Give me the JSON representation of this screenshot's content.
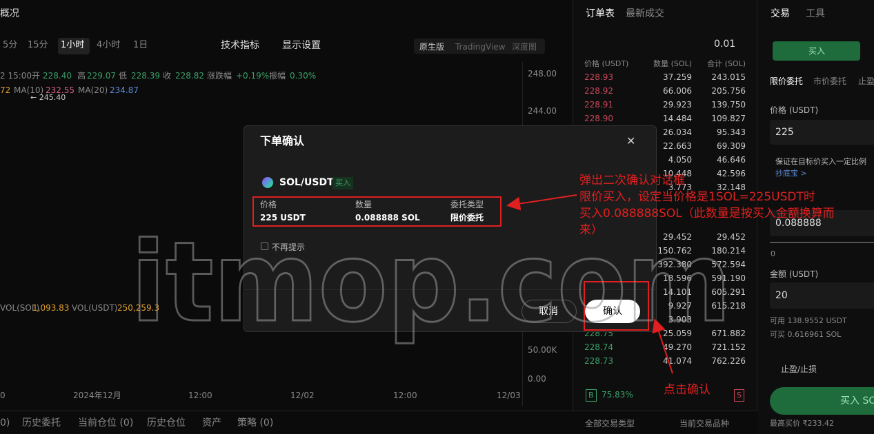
{
  "chart_panel": {
    "title": "概况",
    "intervals": [
      "5分",
      "15分",
      "1小时",
      "4小时",
      "1日"
    ],
    "toolbar": [
      "技术指标",
      "显示设置"
    ],
    "views": [
      "原生版",
      "TradingView",
      "深度图"
    ],
    "ohlc_line": {
      "time": "2 15:00",
      "open_label": "开",
      "open": "228.40",
      "high_label": "高",
      "high": "229.07",
      "low_label": "低",
      "low": "228.39",
      "close_label": "收",
      "close": "228.82",
      "change_label": "涨跌幅",
      "change": "+0.19%",
      "amp_label": "振幅",
      "amp": "0.30%"
    },
    "ma_line": [
      "72",
      "MA(10)",
      "232.55",
      "MA(20)",
      "234.87"
    ],
    "high_marker": "← 245.40",
    "price_axis": [
      "248.00",
      "244.00"
    ],
    "vol_line": [
      "VOL(SOL)",
      "1,093.83",
      "VOL(USDT)",
      "250,259.3"
    ],
    "vol_axis": [
      "50.00K",
      "0.00"
    ],
    "time_axis": [
      "0",
      "2024年12月",
      "12:00",
      "12/02",
      "12:00",
      "12/03"
    ]
  },
  "bottom_tabs": [
    "0)",
    "历史委托",
    "当前仓位 (0)",
    "历史仓位",
    "资产",
    "策略 (0)"
  ],
  "bottom_right": [
    "全部交易类型",
    "当前交易品种"
  ],
  "orderbook": {
    "tabs": [
      "订单表",
      "最新成交"
    ],
    "precision": "0.01",
    "headers": [
      "价格 (USDT)",
      "数量 (SOL)",
      "合计 (SOL)"
    ],
    "asks": [
      {
        "price": "228.93",
        "qty": "37.259",
        "total": "243.015"
      },
      {
        "price": "228.92",
        "qty": "66.006",
        "total": "205.756"
      },
      {
        "price": "228.91",
        "qty": "29.923",
        "total": "139.750"
      },
      {
        "price": "228.90",
        "qty": "14.484",
        "total": "109.827"
      },
      {
        "qty": "26.034",
        "total": "95.343"
      },
      {
        "qty": "22.663",
        "total": "69.309"
      },
      {
        "qty": "4.050",
        "total": "46.646"
      },
      {
        "qty": "10.448",
        "total": "42.596"
      },
      {
        "qty": "3.773",
        "total": "32.148"
      }
    ],
    "bids": [
      {
        "qty": "29.452",
        "total": "29.452"
      },
      {
        "qty": "150.762",
        "total": "180.214"
      },
      {
        "qty": "392.380",
        "total": "572.594"
      },
      {
        "qty": "18.596",
        "total": "591.190"
      },
      {
        "qty": "14.101",
        "total": "605.291"
      },
      {
        "qty": "9.927",
        "total": "615.218"
      },
      {
        "qty": "3.903"
      },
      {
        "price": "228.75",
        "qty": "25.059",
        "total": "671.882"
      },
      {
        "price": "228.74",
        "qty": "49.270",
        "total": "721.152"
      },
      {
        "price": "228.73",
        "qty": "41.074",
        "total": "762.226"
      }
    ],
    "ratio_buy": "B",
    "ratio_buy_pct": "75.83%",
    "ratio_sell": "S"
  },
  "trade_panel": {
    "tabs": [
      "交易",
      "工具"
    ],
    "buy_button": "买入",
    "order_types": [
      "限价委托",
      "市价委托",
      "止盈"
    ],
    "price_label": "价格 (USDT)",
    "price": "225",
    "hint": "保证在目标价买入一定比例",
    "hint_link": "抄底宝 >",
    "qty": "0.088888",
    "slider_min": "0",
    "amount_label": "金额 (USDT)",
    "amount": "20",
    "available": "可用 138.9552 USDT",
    "can_buy": "可买 0.616961 SOL",
    "tpsl": "止盈/止损",
    "buy_sol": "买入 SO",
    "max_buy": "最高买价 ₹233.42"
  },
  "modal": {
    "title": "下单确认",
    "close": "✕",
    "pair": "SOL/USDT",
    "side": "买入",
    "fields": [
      {
        "label": "价格",
        "value": "225 USDT"
      },
      {
        "label": "数量",
        "value": "0.088888 SOL"
      },
      {
        "label": "委托类型",
        "value": "限价委托"
      }
    ],
    "dont_show": "不再提示",
    "cancel": "取消",
    "confirm": "确认"
  },
  "annotations": {
    "note": [
      "弹出二次确认对话框",
      "限价买入，设定当价格是1SOL=225USDT时",
      "买入0.088888SOL（此数量是按买入金额换算而",
      "来）"
    ],
    "click": "点击确认"
  },
  "watermark": "itmop.com"
}
